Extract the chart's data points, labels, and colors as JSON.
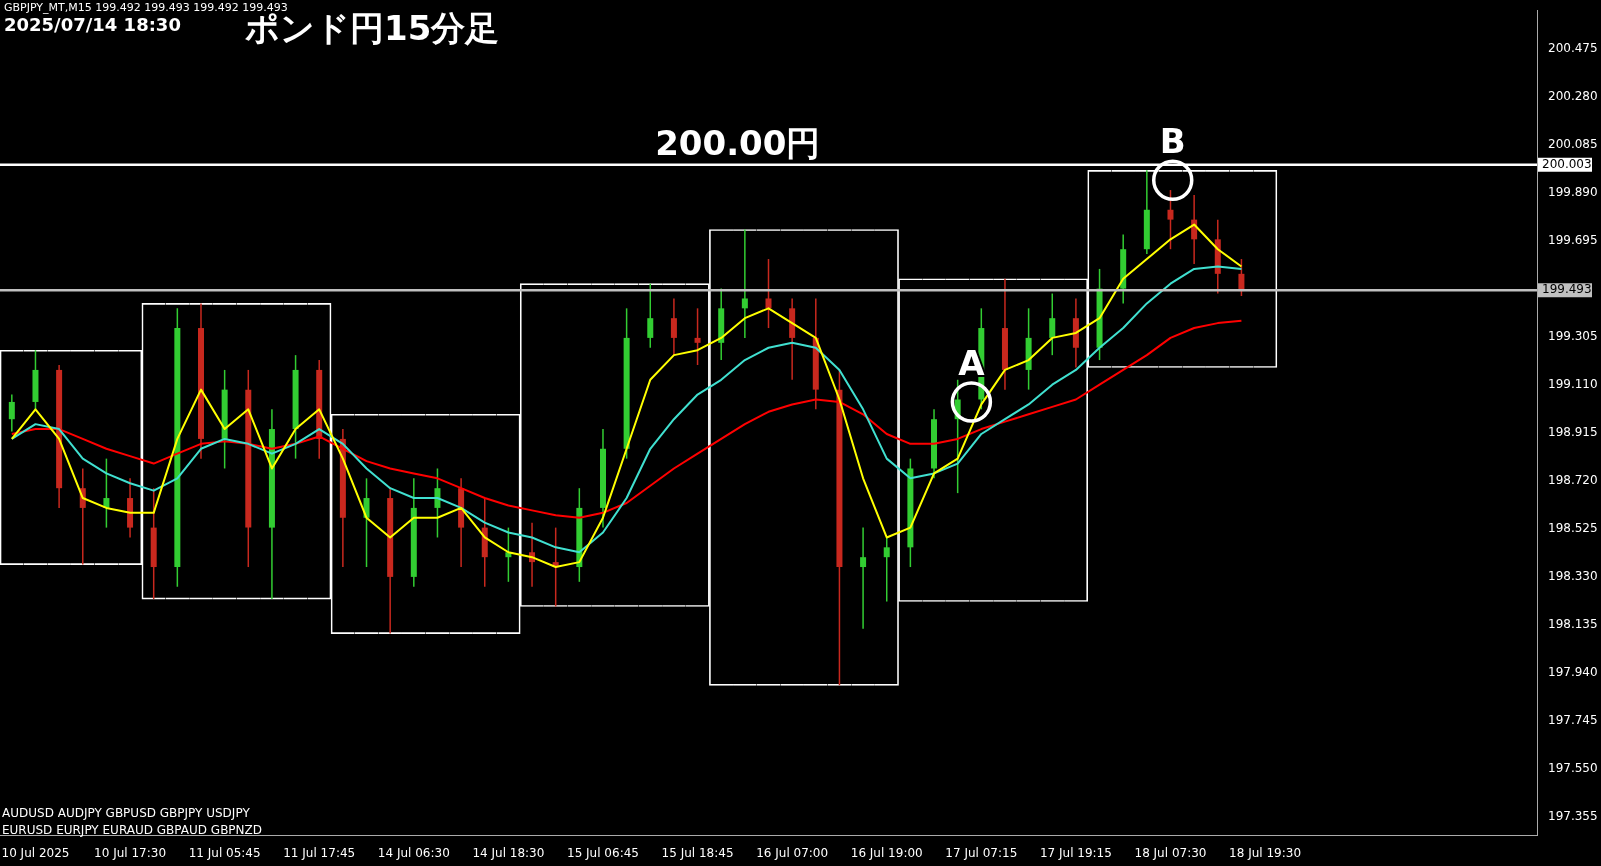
{
  "chart_data": {
    "type": "candlestick",
    "title": "ポンド円15分足",
    "annotations": [
      "GBPJPY_MT,M15  199.492 199.493 199.492 199.493",
      "2025/07/14 18:30",
      "AUDUSD  AUDJPY  GBPUSD GBPJPY  USDJPY",
      "EURUSD  EURJPY  EURAUD  GBPAUD  GBPNZD",
      {
        "text": "200.00円",
        "y": 200.003
      },
      {
        "text": "A",
        "y": 199.04
      },
      {
        "text": "B",
        "y": 199.94
      }
    ],
    "categories": [
      null,
      "10 Jul 2025",
      null,
      null,
      null,
      "10 Jul 17:30",
      null,
      null,
      null,
      "11 Jul 05:45",
      null,
      null,
      null,
      "11 Jul 17:45",
      null,
      null,
      null,
      "14 Jul 06:30",
      null,
      null,
      null,
      "14 Jul 18:30",
      null,
      null,
      null,
      "15 Jul 06:45",
      null,
      null,
      null,
      "15 Jul 18:45",
      null,
      null,
      null,
      "16 Jul 07:00",
      null,
      null,
      null,
      "16 Jul 19:00",
      null,
      null,
      null,
      "17 Jul 07:15",
      null,
      null,
      null,
      "17 Jul 19:15",
      null,
      null,
      null,
      "18 Jul 07:30",
      null,
      null,
      null,
      "18 Jul 19:30",
      null,
      null,
      null,
      null,
      null,
      null,
      null,
      null,
      null,
      null,
      null
    ],
    "ohlc": [
      [
        198.97,
        199.07,
        198.92,
        199.04
      ],
      [
        199.04,
        199.25,
        199.01,
        199.17
      ],
      [
        199.17,
        199.19,
        198.61,
        198.69
      ],
      [
        198.69,
        198.77,
        198.38,
        198.61
      ],
      [
        198.61,
        198.81,
        198.53,
        198.65
      ],
      [
        198.65,
        198.73,
        198.49,
        198.53
      ],
      [
        198.53,
        198.69,
        198.24,
        198.37
      ],
      [
        198.37,
        199.42,
        198.29,
        199.34
      ],
      [
        199.34,
        199.44,
        198.81,
        198.89
      ],
      [
        198.89,
        199.17,
        198.77,
        199.09
      ],
      [
        199.09,
        199.17,
        198.37,
        198.53
      ],
      [
        198.53,
        199.01,
        198.24,
        198.93
      ],
      [
        198.93,
        199.23,
        198.81,
        199.17
      ],
      [
        199.17,
        199.21,
        198.81,
        198.89
      ],
      [
        198.89,
        198.93,
        198.37,
        198.57
      ],
      [
        198.57,
        198.73,
        198.37,
        198.65
      ],
      [
        198.65,
        198.69,
        198.1,
        198.33
      ],
      [
        198.33,
        198.73,
        198.29,
        198.61
      ],
      [
        198.61,
        198.77,
        198.49,
        198.69
      ],
      [
        198.69,
        198.73,
        198.37,
        198.53
      ],
      [
        198.53,
        198.65,
        198.29,
        198.41
      ],
      [
        198.41,
        198.53,
        198.31,
        198.43
      ],
      [
        198.43,
        198.55,
        198.29,
        198.39
      ],
      [
        198.39,
        198.53,
        198.21,
        198.37
      ],
      [
        198.37,
        198.69,
        198.31,
        198.61
      ],
      [
        198.61,
        198.93,
        198.53,
        198.85
      ],
      [
        198.85,
        199.42,
        198.81,
        199.3
      ],
      [
        199.3,
        199.52,
        199.26,
        199.38
      ],
      [
        199.38,
        199.46,
        199.23,
        199.3
      ],
      [
        199.3,
        199.42,
        199.19,
        199.28
      ],
      [
        199.28,
        199.5,
        199.21,
        199.42
      ],
      [
        199.42,
        199.74,
        199.3,
        199.46
      ],
      [
        199.46,
        199.62,
        199.34,
        199.42
      ],
      [
        199.42,
        199.46,
        199.13,
        199.3
      ],
      [
        199.3,
        199.46,
        199.01,
        199.09
      ],
      [
        199.09,
        199.17,
        197.89,
        198.37
      ],
      [
        198.37,
        198.53,
        198.12,
        198.41
      ],
      [
        198.41,
        198.49,
        198.23,
        198.45
      ],
      [
        198.45,
        198.81,
        198.37,
        198.77
      ],
      [
        198.77,
        199.01,
        198.73,
        198.97
      ],
      [
        198.97,
        199.13,
        198.67,
        199.05
      ],
      [
        199.05,
        199.42,
        199.01,
        199.34
      ],
      [
        199.34,
        199.54,
        199.09,
        199.17
      ],
      [
        199.17,
        199.42,
        199.09,
        199.3
      ],
      [
        199.3,
        199.48,
        199.23,
        199.38
      ],
      [
        199.38,
        199.46,
        199.18,
        199.26
      ],
      [
        199.26,
        199.58,
        199.21,
        199.5
      ],
      [
        199.5,
        199.72,
        199.44,
        199.66
      ],
      [
        199.66,
        199.98,
        199.64,
        199.82
      ],
      [
        199.82,
        199.9,
        199.66,
        199.78
      ],
      [
        199.78,
        199.88,
        199.6,
        199.7
      ],
      [
        199.7,
        199.78,
        199.48,
        199.56
      ],
      [
        199.56,
        199.62,
        199.47,
        199.49
      ],
      null,
      null,
      null,
      null,
      null,
      null,
      null,
      null,
      null,
      null,
      null,
      null
    ],
    "colors": [
      "#32cd32",
      "#32cd32",
      "#c8281e",
      "#c8281e",
      "#32cd32",
      "#c8281e",
      "#c8281e",
      "#32cd32",
      "#c8281e",
      "#32cd32",
      "#c8281e",
      "#32cd32",
      "#32cd32",
      "#c8281e",
      "#c8281e",
      "#32cd32",
      "#c8281e",
      "#32cd32",
      "#32cd32",
      "#c8281e",
      "#c8281e",
      "#32cd32",
      "#c8281e",
      "#c8281e",
      "#32cd32",
      "#32cd32",
      "#32cd32",
      "#32cd32",
      "#c8281e",
      "#c8281e",
      "#32cd32",
      "#32cd32",
      "#c8281e",
      "#c8281e",
      "#c8281e",
      "#c8281e",
      "#32cd32",
      "#32cd32",
      "#32cd32",
      "#32cd32",
      "#32cd32",
      "#32cd32",
      "#c8281e",
      "#32cd32",
      "#32cd32",
      "#c8281e",
      "#32cd32",
      "#32cd32",
      "#32cd32",
      "#c8281e",
      "#c8281e",
      "#c8281e",
      "#c8281e",
      null,
      null,
      null,
      null,
      null,
      null,
      null,
      null,
      null,
      null,
      null,
      null
    ],
    "series": [
      {
        "type": "line",
        "color": "#ffff00",
        "values": [
          198.89,
          199.01,
          198.89,
          198.65,
          198.61,
          198.59,
          198.59,
          198.89,
          199.09,
          198.93,
          199.01,
          198.77,
          198.93,
          199.01,
          198.81,
          198.57,
          198.49,
          198.57,
          198.57,
          198.61,
          198.49,
          198.43,
          198.41,
          198.37,
          198.39,
          198.57,
          198.85,
          199.13,
          199.23,
          199.25,
          199.3,
          199.38,
          199.42,
          199.36,
          199.3,
          199.05,
          198.73,
          198.49,
          198.53,
          198.75,
          198.81,
          199.03,
          199.17,
          199.21,
          199.3,
          199.32,
          199.38,
          199.54,
          199.62,
          199.7,
          199.76,
          199.66,
          199.59,
          null,
          null,
          null,
          null,
          null,
          null,
          null,
          null,
          null,
          null,
          null,
          null
        ]
      },
      {
        "type": "line",
        "color": "#40e0d0",
        "values": [
          198.89,
          198.95,
          198.93,
          198.81,
          198.75,
          198.71,
          198.68,
          198.73,
          198.85,
          198.89,
          198.87,
          198.83,
          198.87,
          198.93,
          198.87,
          198.77,
          198.69,
          198.65,
          198.65,
          198.61,
          198.55,
          198.51,
          198.49,
          198.45,
          198.43,
          198.51,
          198.65,
          198.85,
          198.97,
          199.07,
          199.13,
          199.21,
          199.26,
          199.28,
          199.26,
          199.17,
          199.01,
          198.81,
          198.73,
          198.75,
          198.79,
          198.91,
          198.97,
          199.03,
          199.11,
          199.17,
          199.26,
          199.34,
          199.44,
          199.52,
          199.58,
          199.59,
          199.58,
          null,
          null,
          null,
          null,
          null,
          null,
          null,
          null,
          null,
          null,
          null,
          null
        ]
      },
      {
        "type": "line",
        "color": "#ff0000",
        "values": [
          198.91,
          198.93,
          198.93,
          198.89,
          198.85,
          198.82,
          198.79,
          198.83,
          198.87,
          198.88,
          198.87,
          198.85,
          198.87,
          198.9,
          198.85,
          198.8,
          198.77,
          198.75,
          198.73,
          198.69,
          198.65,
          198.62,
          198.6,
          198.58,
          198.57,
          198.59,
          198.63,
          198.7,
          198.77,
          198.83,
          198.89,
          198.95,
          199.0,
          199.03,
          199.05,
          199.04,
          198.99,
          198.91,
          198.87,
          198.87,
          198.89,
          198.93,
          198.96,
          198.99,
          199.02,
          199.05,
          199.11,
          199.17,
          199.23,
          199.3,
          199.34,
          199.36,
          199.37,
          null,
          null,
          null,
          null,
          null,
          null,
          null,
          null,
          null,
          null,
          null,
          null
        ]
      },
      {
        "type": "bar",
        "color": "#ffffff",
        "base": [
          198.38,
          198.38,
          198.38,
          198.38,
          198.38,
          198.38,
          198.24,
          198.24,
          198.24,
          198.24,
          198.24,
          198.24,
          198.24,
          198.24,
          198.1,
          198.1,
          198.1,
          198.1,
          198.1,
          198.1,
          198.1,
          198.1,
          198.21,
          198.21,
          198.21,
          198.21,
          198.21,
          198.21,
          198.21,
          198.21,
          197.89,
          197.89,
          197.89,
          197.89,
          197.89,
          197.89,
          197.89,
          197.89,
          198.23,
          198.23,
          198.23,
          198.23,
          198.23,
          198.23,
          198.23,
          198.23,
          199.18,
          199.18,
          199.18,
          199.18,
          199.18,
          199.18,
          199.18,
          199.18,
          null,
          null,
          null,
          null,
          null,
          null,
          null,
          null,
          null,
          null,
          null
        ],
        "values": [
          0.87,
          0.87,
          0.87,
          0.87,
          0.87,
          0.87,
          1.2,
          1.2,
          1.2,
          1.2,
          1.2,
          1.2,
          1.2,
          1.2,
          0.89,
          0.89,
          0.89,
          0.89,
          0.89,
          0.89,
          0.89,
          0.89,
          1.31,
          1.31,
          1.31,
          1.31,
          1.31,
          1.31,
          1.31,
          1.31,
          1.85,
          1.85,
          1.85,
          1.85,
          1.85,
          1.85,
          1.85,
          1.85,
          1.31,
          1.31,
          1.31,
          1.31,
          1.31,
          1.31,
          1.31,
          1.31,
          0.8,
          0.8,
          0.8,
          0.8,
          0.8,
          0.8,
          0.8,
          0.8,
          null,
          null,
          null,
          null,
          null,
          null,
          null,
          null,
          null,
          null,
          null
        ]
      }
    ],
    "ref_lines": [
      {
        "axis": "y",
        "value": 200.003,
        "label": "200.003",
        "color": "#ffffff"
      },
      {
        "axis": "y",
        "value": 199.493,
        "label": "199.493",
        "color": "#c0c0c0"
      }
    ],
    "ylim": [
      197.28,
      200.63
    ],
    "yticks": [
      {
        "value": 197.355,
        "label": "197.355"
      },
      {
        "value": 197.55,
        "label": "197.550"
      },
      {
        "value": 197.745,
        "label": "197.745"
      },
      {
        "value": 197.94,
        "label": "197.940"
      },
      {
        "value": 198.135,
        "label": "198.135"
      },
      {
        "value": 198.33,
        "label": "198.330"
      },
      {
        "value": 198.525,
        "label": "198.525"
      },
      {
        "value": 198.72,
        "label": "198.720"
      },
      {
        "value": 198.915,
        "label": "198.915"
      },
      {
        "value": 199.11,
        "label": "199.110"
      },
      {
        "value": 199.305,
        "label": "199.305"
      },
      {
        "value": 199.695,
        "label": "199.695"
      },
      {
        "value": 199.89,
        "label": "199.890"
      },
      {
        "value": 200.085,
        "label": "200.085"
      },
      {
        "value": 200.28,
        "label": "200.280"
      },
      {
        "value": 200.475,
        "label": "200.475"
      }
    ]
  }
}
